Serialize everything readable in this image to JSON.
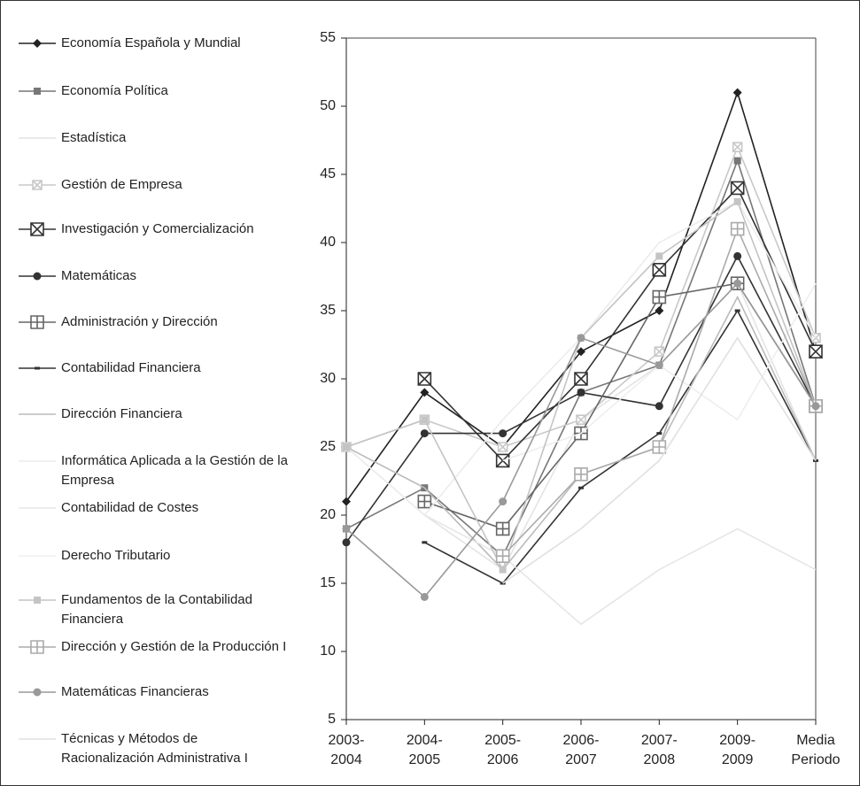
{
  "chart_data": {
    "type": "line",
    "categories": [
      [
        "2003-",
        "2004"
      ],
      [
        "2004-",
        "2005"
      ],
      [
        "2005-",
        "2006"
      ],
      [
        "2006-",
        "2007"
      ],
      [
        "2007-",
        "2008"
      ],
      [
        "2009-",
        "2009"
      ],
      [
        "Media",
        "Periodo"
      ]
    ],
    "ylim": [
      5,
      55
    ],
    "yticks": [
      5,
      10,
      15,
      20,
      25,
      30,
      35,
      40,
      45,
      50,
      55
    ],
    "series": [
      {
        "name": "Economía Española y Mundial",
        "color": "#222222",
        "marker": "diamond",
        "values": [
          21,
          29,
          25,
          32,
          35,
          51,
          32
        ]
      },
      {
        "name": "Economía Política",
        "color": "#777777",
        "marker": "square",
        "values": [
          19,
          22,
          17,
          29,
          31,
          46,
          28
        ]
      },
      {
        "name": "Estadística",
        "color": "#e4e4e4",
        "marker": "none",
        "values": [
          25,
          20,
          16,
          27,
          31,
          37,
          24
        ]
      },
      {
        "name": "Gestión de Empresa",
        "color": "#c8c8c8",
        "marker": "square-x",
        "values": [
          25,
          27,
          25,
          27,
          32,
          47,
          33
        ]
      },
      {
        "name": "Investigación y Comercialización",
        "color": "#333333",
        "marker": "box-x",
        "values": [
          null,
          30,
          24,
          30,
          38,
          44,
          32
        ]
      },
      {
        "name": "Matemáticas",
        "color": "#333333",
        "marker": "circle",
        "values": [
          18,
          26,
          26,
          29,
          28,
          39,
          28
        ]
      },
      {
        "name": "Administración y Dirección",
        "color": "#666666",
        "marker": "box-plus",
        "values": [
          null,
          21,
          19,
          26,
          36,
          37,
          28
        ]
      },
      {
        "name": "Contabilidad Financiera",
        "color": "#333333",
        "marker": "dash",
        "values": [
          null,
          18,
          15,
          22,
          26,
          35,
          24
        ]
      },
      {
        "name": "Dirección Financiera",
        "color": "#bbbbbb",
        "marker": "none",
        "values": [
          25,
          22,
          16,
          23,
          25,
          36,
          24
        ]
      },
      {
        "name": "Informática Aplicada a la Gestión de la Empresa",
        "color": "#ececec",
        "marker": "none",
        "values": [
          25,
          20,
          27,
          33,
          40,
          43,
          33
        ]
      },
      {
        "name": "Contabilidad de Costes",
        "color": "#e6e6e6",
        "marker": "none",
        "values": [
          null,
          20,
          17,
          12,
          16,
          19,
          16
        ]
      },
      {
        "name": "Derecho Tributario",
        "color": "#eeeeee",
        "marker": "none",
        "values": [
          null,
          null,
          24,
          26,
          31,
          27,
          37
        ]
      },
      {
        "name": "Fundamentos de la Contabilidad Financiera",
        "color": "#c4c4c4",
        "marker": "square",
        "values": [
          25,
          27,
          16,
          33,
          39,
          43,
          28
        ]
      },
      {
        "name": "Dirección y Gestión de la Producción I",
        "color": "#aaaaaa",
        "marker": "box-plus",
        "values": [
          null,
          null,
          17,
          23,
          25,
          41,
          28
        ]
      },
      {
        "name": "Matemáticas Financieras",
        "color": "#999999",
        "marker": "circle",
        "values": [
          19,
          14,
          21,
          33,
          31,
          37,
          28
        ]
      },
      {
        "name": "Técnicas y Métodos de Racionalización Administrativa I",
        "color": "#e0e0e0",
        "marker": "none",
        "values": [
          null,
          null,
          15,
          19,
          24,
          33,
          24
        ]
      }
    ]
  }
}
